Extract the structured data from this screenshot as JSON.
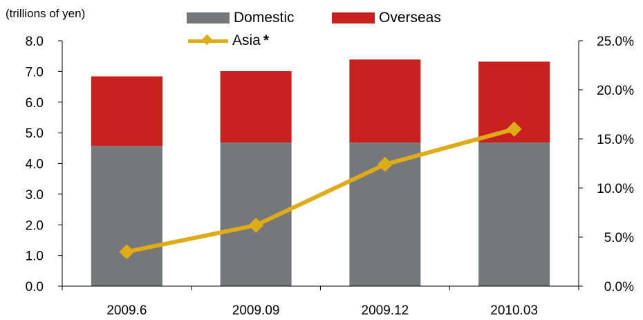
{
  "unit_label": "(trillions of yen)",
  "legend": {
    "domestic": "Domestic",
    "overseas": "Overseas",
    "asia": "Asia",
    "asia_mark": "*"
  },
  "colors": {
    "domestic": "#75777a",
    "overseas": "#c8201f",
    "asia": "#ddac17",
    "axis": "#000000"
  },
  "chart_data": {
    "type": "bar",
    "stacked": true,
    "categories": [
      "2009.6",
      "2009.09",
      "2009.12",
      "2010.03"
    ],
    "series": [
      {
        "name": "Domestic",
        "axis": "left",
        "values": [
          4.57,
          4.68,
          4.68,
          4.68
        ]
      },
      {
        "name": "Overseas",
        "axis": "left",
        "values": [
          2.27,
          2.33,
          2.71,
          2.64
        ]
      },
      {
        "name": "Asia",
        "type": "line",
        "axis": "right",
        "values": [
          3.5,
          6.2,
          12.4,
          16.0
        ]
      }
    ],
    "y_left": {
      "min": 0,
      "max": 8,
      "ticks": [
        "0.0",
        "1.0",
        "2.0",
        "3.0",
        "4.0",
        "5.0",
        "6.0",
        "7.0",
        "8.0"
      ]
    },
    "y_right": {
      "min": 0,
      "max": 25,
      "ticks": [
        "0.0%",
        "5.0%",
        "10.0%",
        "15.0%",
        "20.0%",
        "25.0%"
      ]
    },
    "grid": false,
    "legend_position": "top-center"
  }
}
